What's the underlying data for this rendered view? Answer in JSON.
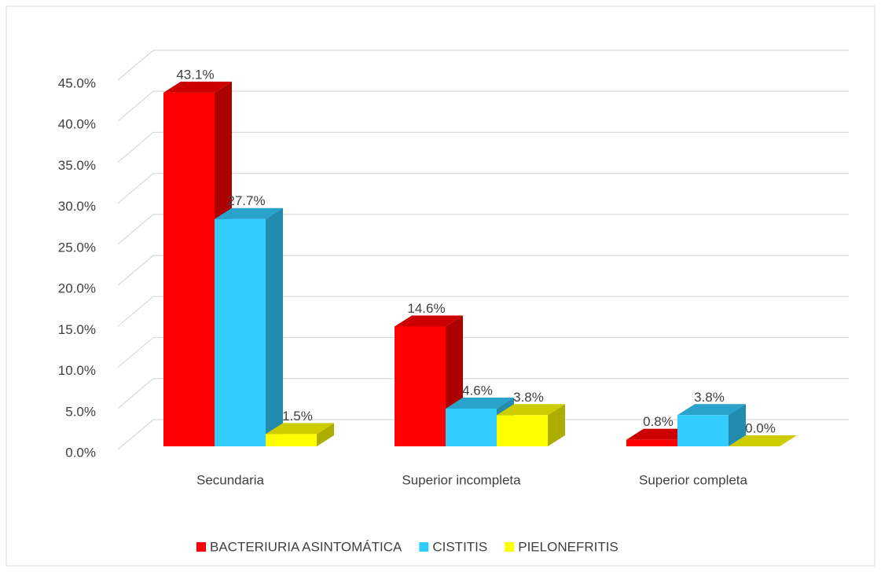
{
  "chart_data": {
    "type": "bar3d",
    "categories": [
      "Secundaria",
      "Superior incompleta",
      "Superior completa"
    ],
    "series": [
      {
        "name": "BACTERIURIA ASINTOMÁTICA",
        "color": "#ff0000",
        "values": [
          43.1,
          14.6,
          0.8
        ],
        "value_labels": [
          "43.1%",
          "14.6%",
          "0.8%"
        ]
      },
      {
        "name": "CISTITIS",
        "color": "#33ccff",
        "values": [
          27.7,
          4.6,
          3.8
        ],
        "value_labels": [
          "27.7%",
          "4.6%",
          "3.8%"
        ]
      },
      {
        "name": "PIELONEFRITIS",
        "color": "#ffff00",
        "values": [
          1.5,
          3.8,
          0.0
        ],
        "value_labels": [
          "1.5%",
          "3.8%",
          "0.0%"
        ]
      }
    ],
    "ylim": [
      0,
      45
    ],
    "yticks": [
      {
        "value": 0,
        "label": "0.0%"
      },
      {
        "value": 5,
        "label": "5.0%"
      },
      {
        "value": 10,
        "label": "10.0%"
      },
      {
        "value": 15,
        "label": "15.0%"
      },
      {
        "value": 20,
        "label": "20.0%"
      },
      {
        "value": 25,
        "label": "25.0%"
      },
      {
        "value": 30,
        "label": "30.0%"
      },
      {
        "value": 35,
        "label": "35.0%"
      },
      {
        "value": 40,
        "label": "40.0%"
      },
      {
        "value": 45,
        "label": "45.0%"
      }
    ],
    "grid": true,
    "legend": "bottom"
  }
}
